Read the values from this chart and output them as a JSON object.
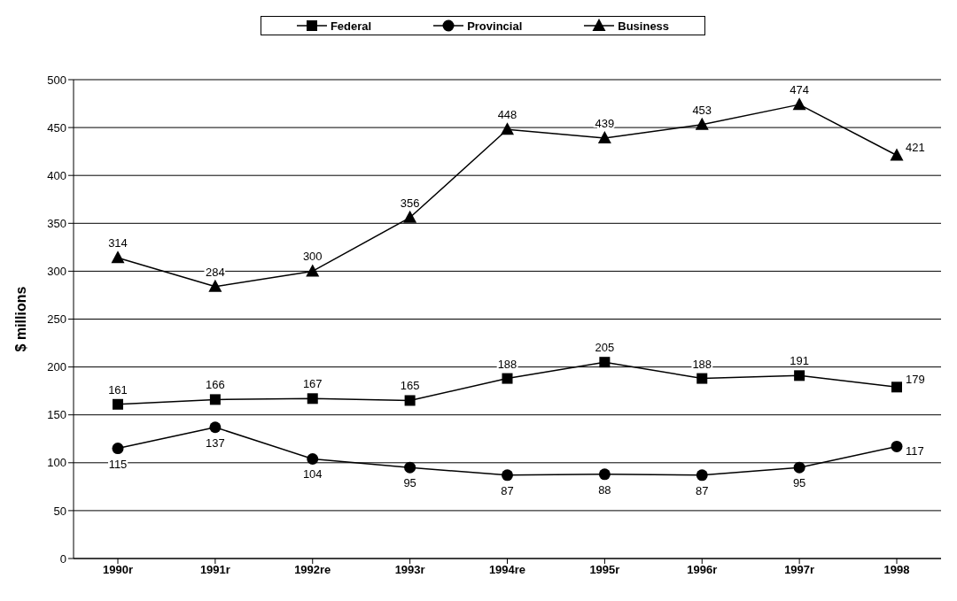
{
  "chart_data": {
    "type": "line",
    "ylabel": "$ millions",
    "categories": [
      "1990r",
      "1991r",
      "1992re",
      "1993r",
      "1994re",
      "1995r",
      "1996r",
      "1997r",
      "1998"
    ],
    "series": [
      {
        "name": "Federal",
        "color": "#000000",
        "marker": "square",
        "values": [
          161,
          166,
          167,
          165,
          188,
          205,
          188,
          191,
          179
        ]
      },
      {
        "name": "Provincial",
        "color": "#000000",
        "marker": "circle",
        "values": [
          115,
          137,
          104,
          95,
          87,
          88,
          87,
          95,
          117
        ]
      },
      {
        "name": "Business",
        "color": "#000000",
        "marker": "triangle",
        "values": [
          314,
          284,
          300,
          356,
          448,
          439,
          453,
          474,
          421
        ]
      }
    ],
    "ylim": [
      0,
      500
    ],
    "yticks": [
      0,
      50,
      100,
      150,
      200,
      250,
      300,
      350,
      400,
      450,
      500
    ],
    "grid": "y",
    "legend": "top",
    "data_labels": true,
    "line_style": "solid"
  }
}
